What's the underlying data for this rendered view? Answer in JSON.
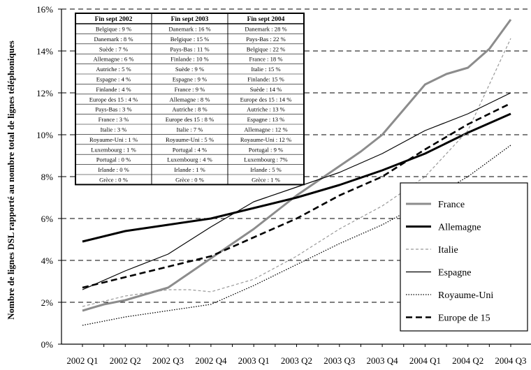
{
  "chart_data": {
    "type": "line",
    "title": "",
    "xlabel": "",
    "ylabel": "Nombre de lignes DSL rapporté au nombre total de lignes téléphoniques",
    "ylim": [
      0,
      16
    ],
    "yticks": [
      "0%",
      "2%",
      "4%",
      "6%",
      "8%",
      "10%",
      "12%",
      "14%",
      "16%"
    ],
    "grid": "horizontal-dashed",
    "legend_position": "bottom-right",
    "categories": [
      "2002 Q1",
      "2002 Q2",
      "2002 Q3",
      "2002 Q4",
      "2003 Q1",
      "2003 Q2",
      "2003 Q3",
      "2003 Q4",
      "2004 Q1",
      "2004 Q2",
      "2004 Q3"
    ],
    "x_padded": [
      "2002 Q1",
      "2002 Q1 end",
      "2002 Q2",
      "2002 Q2 end",
      "2002 Q3",
      "2002 Q3 end",
      "2002 Q4",
      "2002 Q4 end",
      "2003 Q1",
      "2003 Q1 end",
      "2003 Q2",
      "2003 Q2 end",
      "2003 Q3",
      "2003 Q3 end",
      "2003 Q4",
      "2003 Q4 end",
      "2004 Q1",
      "2004 Q1 end",
      "2004 Q2",
      "2004 Q2 end",
      "2004 Q3"
    ],
    "series": [
      {
        "name": "France",
        "color": "#8c8c8c",
        "dash": "",
        "width": 3,
        "x": [
          0,
          1,
          2,
          3,
          4,
          5,
          6,
          7,
          8,
          9,
          10,
          11,
          12,
          13,
          14,
          15,
          16,
          17,
          18,
          19,
          20
        ],
        "values": [
          1.6,
          1.9,
          2.1,
          2.4,
          2.7,
          3.4,
          4.1,
          4.8,
          5.5,
          6.3,
          7.1,
          7.8,
          8.5,
          9.2,
          10.0,
          11.2,
          12.4,
          12.9,
          13.2,
          14.1,
          15.5
        ]
      },
      {
        "name": "Allemagne",
        "color": "#000000",
        "dash": "",
        "width": 3,
        "x": [
          0,
          2,
          4,
          6,
          8,
          10,
          12,
          14,
          16,
          18,
          20
        ],
        "values": [
          4.9,
          5.4,
          5.7,
          6.0,
          6.5,
          7.0,
          7.6,
          8.3,
          9.1,
          10.1,
          11.0
        ]
      },
      {
        "name": "Italie",
        "color": "#999999",
        "dash": "4,3",
        "width": 1.2,
        "x": [
          0,
          2,
          4,
          5,
          6,
          8,
          10,
          12,
          14,
          16,
          18,
          20
        ],
        "values": [
          1.8,
          2.3,
          2.6,
          2.6,
          2.5,
          3.1,
          4.2,
          5.5,
          6.6,
          8.0,
          10.2,
          14.6
        ]
      },
      {
        "name": "Espagne",
        "color": "#000000",
        "dash": "",
        "width": 1.2,
        "x": [
          0,
          2,
          4,
          6,
          8,
          10,
          12,
          14,
          16,
          18,
          20
        ],
        "values": [
          2.6,
          3.5,
          4.3,
          5.6,
          6.8,
          7.5,
          8.2,
          9.1,
          10.2,
          11.0,
          12.0
        ]
      },
      {
        "name": "Royaume-Uni",
        "color": "#000000",
        "dash": "1.5,2",
        "width": 1.3,
        "x": [
          0,
          2,
          4,
          6,
          8,
          10,
          12,
          14,
          16,
          18,
          20
        ],
        "values": [
          0.9,
          1.3,
          1.6,
          1.9,
          2.8,
          3.8,
          4.8,
          5.7,
          6.8,
          8.0,
          9.5
        ]
      },
      {
        "name": "Europe de 15",
        "color": "#000000",
        "dash": "9,5",
        "width": 2.6,
        "x": [
          0,
          2,
          4,
          6,
          8,
          10,
          12,
          14,
          16,
          18,
          20
        ],
        "values": [
          2.7,
          3.2,
          3.7,
          4.2,
          5.1,
          6.0,
          7.1,
          8.0,
          9.3,
          10.5,
          11.5
        ]
      }
    ],
    "table": {
      "columns": [
        "Fin sept 2002",
        "Fin sept 2003",
        "Fin sept 2004"
      ],
      "rows": [
        [
          "Belgique : 9 %",
          "Danemark : 16 %",
          "Danemark : 28 %"
        ],
        [
          "Danemark : 8 %",
          "Belgique : 15 %",
          "Pays-Bas : 22 %"
        ],
        [
          "Suède : 7 %",
          "Pays-Bas : 11 %",
          "Belgique : 22 %"
        ],
        [
          "Allemagne : 6 %",
          "Finlande : 10 %",
          "France : 18 %"
        ],
        [
          "Autriche : 5 %",
          "Suède : 9 %",
          "Italie : 15 %"
        ],
        [
          "Espagne : 4 %",
          "Espagne : 9 %",
          "Finlande: 15 %"
        ],
        [
          "Finlande : 4 %",
          "France : 9 %",
          "Suède : 14 %"
        ],
        [
          "Europe des 15 : 4 %",
          "Allemagne : 8 %",
          "Europe des 15 : 14 %"
        ],
        [
          "Pays-Bas : 3  %",
          "Autriche : 8 %",
          "Autriche : 13 %"
        ],
        [
          "France : 3 %",
          "Europe des 15 : 8 %",
          "Espagne : 13 %"
        ],
        [
          "Italie : 3 %",
          "Italie : 7 %",
          "Allemagne : 12 %"
        ],
        [
          "Royaume-Uni : 1 %",
          "Royaume-Uni : 5 %",
          "Royaume-Uni : 12 %"
        ],
        [
          "Luxembourg : 1 %",
          "Portugal : 4 %",
          "Portugal : 9 %"
        ],
        [
          "Portugal : 0 %",
          "Luxembourg : 4 %",
          "Luxembourg : 7%"
        ],
        [
          "Irlande : 0 %",
          "Irlande : 1 %",
          "Irlande : 5 %"
        ],
        [
          "Grèce : 0 %",
          "Grèce : 0 %",
          "Grèce : 1 %"
        ]
      ]
    }
  }
}
